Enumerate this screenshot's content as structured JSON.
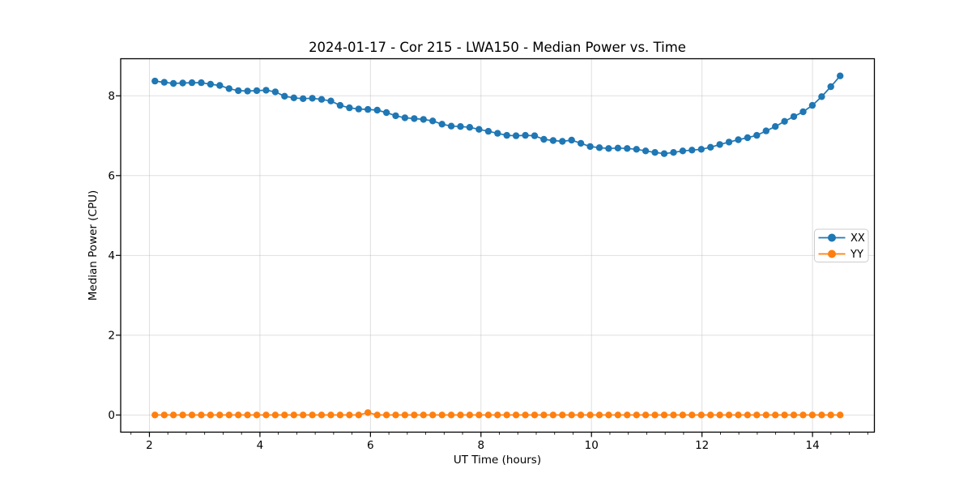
{
  "window": {
    "background": "#ffffff"
  },
  "chart_data": {
    "type": "line",
    "title": "2024-01-17 - Cor 215 - LWA150 - Median Power vs. Time",
    "xlabel": "UT Time (hours)",
    "ylabel": "Median Power (CPU)",
    "xlim": [
      1.48,
      15.12
    ],
    "ylim": [
      -0.43,
      8.93
    ],
    "x_ticks": [
      2,
      4,
      6,
      8,
      10,
      12,
      14
    ],
    "y_ticks": [
      0,
      2,
      4,
      6,
      8
    ],
    "x_minor_tick_step": 0.33333,
    "grid": true,
    "grid_color": "rgba(176,176,176,0.4)",
    "legend_position": "center right",
    "series": [
      {
        "name": "XX",
        "color": "#1f77b4",
        "marker": "circle",
        "x": [
          2.1,
          2.268,
          2.435,
          2.603,
          2.77,
          2.938,
          3.105,
          3.273,
          3.441,
          3.608,
          3.776,
          3.943,
          4.111,
          4.278,
          4.446,
          4.614,
          4.781,
          4.949,
          5.116,
          5.284,
          5.451,
          5.619,
          5.787,
          5.954,
          6.122,
          6.289,
          6.457,
          6.624,
          6.792,
          6.96,
          7.127,
          7.295,
          7.462,
          7.63,
          7.797,
          7.965,
          8.133,
          8.3,
          8.468,
          8.635,
          8.803,
          8.97,
          9.138,
          9.306,
          9.473,
          9.641,
          9.808,
          9.976,
          10.143,
          10.311,
          10.479,
          10.646,
          10.814,
          10.981,
          11.149,
          11.316,
          11.484,
          11.652,
          11.819,
          11.987,
          12.154,
          12.322,
          12.489,
          12.657,
          12.825,
          12.992,
          13.16,
          13.327,
          13.495,
          13.662,
          13.83,
          13.997,
          14.165,
          14.332,
          14.5
        ],
        "y": [
          8.37,
          8.34,
          8.31,
          8.32,
          8.33,
          8.33,
          8.29,
          8.26,
          8.18,
          8.13,
          8.12,
          8.13,
          8.14,
          8.1,
          7.99,
          7.95,
          7.93,
          7.94,
          7.91,
          7.87,
          7.76,
          7.7,
          7.67,
          7.66,
          7.64,
          7.58,
          7.5,
          7.45,
          7.43,
          7.41,
          7.37,
          7.29,
          7.24,
          7.23,
          7.21,
          7.16,
          7.11,
          7.06,
          7.01,
          7.0,
          7.01,
          7.0,
          6.91,
          6.88,
          6.86,
          6.89,
          6.81,
          6.73,
          6.7,
          6.68,
          6.69,
          6.68,
          6.66,
          6.62,
          6.58,
          6.55,
          6.58,
          6.62,
          6.64,
          6.66,
          6.71,
          6.78,
          6.84,
          6.9,
          6.95,
          7.01,
          7.12,
          7.23,
          7.36,
          7.48,
          7.6,
          7.76,
          7.98,
          8.23,
          8.5
        ]
      },
      {
        "name": "YY",
        "color": "#ff7f0e",
        "marker": "circle",
        "x": [
          2.1,
          2.268,
          2.435,
          2.603,
          2.77,
          2.938,
          3.105,
          3.273,
          3.441,
          3.608,
          3.776,
          3.943,
          4.111,
          4.278,
          4.446,
          4.614,
          4.781,
          4.949,
          5.116,
          5.284,
          5.451,
          5.619,
          5.787,
          5.954,
          6.122,
          6.289,
          6.457,
          6.624,
          6.792,
          6.96,
          7.127,
          7.295,
          7.462,
          7.63,
          7.797,
          7.965,
          8.133,
          8.3,
          8.468,
          8.635,
          8.803,
          8.97,
          9.138,
          9.306,
          9.473,
          9.641,
          9.808,
          9.976,
          10.143,
          10.311,
          10.479,
          10.646,
          10.814,
          10.981,
          11.149,
          11.316,
          11.484,
          11.652,
          11.819,
          11.987,
          12.154,
          12.322,
          12.489,
          12.657,
          12.825,
          12.992,
          13.16,
          13.327,
          13.495,
          13.662,
          13.83,
          13.997,
          14.165,
          14.332,
          14.5
        ],
        "y": [
          0.0,
          0.0,
          0.0,
          0.0,
          0.0,
          0.0,
          0.0,
          0.0,
          0.0,
          0.0,
          0.0,
          0.0,
          0.0,
          0.0,
          0.0,
          0.0,
          0.0,
          0.0,
          0.0,
          0.0,
          0.0,
          0.0,
          0.0,
          0.06,
          0.0,
          0.0,
          0.0,
          0.0,
          0.0,
          0.0,
          0.0,
          0.0,
          0.0,
          0.0,
          0.0,
          0.0,
          0.0,
          0.0,
          0.0,
          0.0,
          0.0,
          0.0,
          0.0,
          0.0,
          0.0,
          0.0,
          0.0,
          0.0,
          0.0,
          0.0,
          0.0,
          0.0,
          0.0,
          0.0,
          0.0,
          0.0,
          0.0,
          0.0,
          0.0,
          0.0,
          0.0,
          0.0,
          0.0,
          0.0,
          0.0,
          0.0,
          0.0,
          0.0,
          0.0,
          0.0,
          0.0,
          0.0,
          0.0,
          0.0,
          0.0
        ]
      }
    ]
  }
}
